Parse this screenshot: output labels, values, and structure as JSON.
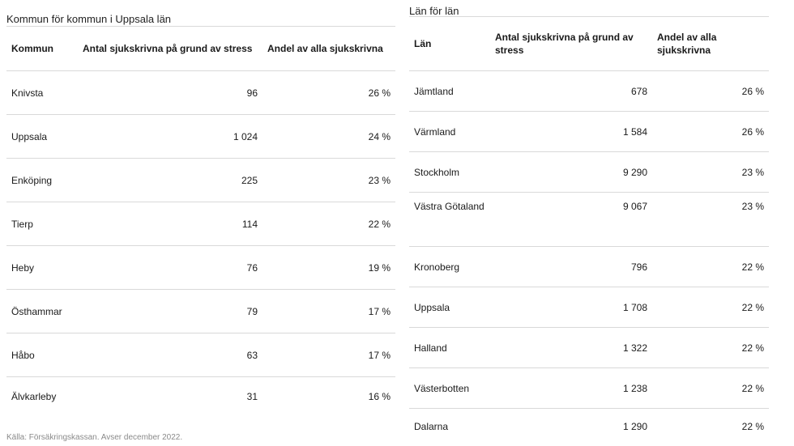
{
  "left_table": {
    "caption": "Kommun för kommun i Uppsala län",
    "headers": [
      "Kommun",
      "Antal sjukskrivna på grund av stress",
      "Andel av alla sjukskrivna"
    ],
    "rows": [
      [
        "Knivsta",
        "96",
        "26 %"
      ],
      [
        "Uppsala",
        "1 024",
        "24 %"
      ],
      [
        "Enköping",
        "225",
        "23 %"
      ],
      [
        "Tierp",
        "114",
        "22 %"
      ],
      [
        "Heby",
        "76",
        "19 %"
      ],
      [
        "Östhammar",
        "79",
        "17 %"
      ],
      [
        "Håbo",
        "63",
        "17 %"
      ],
      [
        "Älvkarleby",
        "31",
        "16 %"
      ]
    ]
  },
  "right_table": {
    "caption": "Län för län",
    "headers": [
      "Län",
      "Antal sjukskrivna på grund av stress",
      "Andel av alla sjukskrivna"
    ],
    "rows": [
      [
        "Jämtland",
        "678",
        "26 %"
      ],
      [
        "Värmland",
        "1 584",
        "26 %"
      ],
      [
        "Stockholm",
        "9 290",
        "23 %"
      ],
      [
        "Västra Götaland",
        "9 067",
        "23 %"
      ],
      [
        "Kronoberg",
        "796",
        "22 %"
      ],
      [
        "Uppsala",
        "1 708",
        "22 %"
      ],
      [
        "Halland",
        "1 322",
        "22 %"
      ],
      [
        "Västerbotten",
        "1 238",
        "22 %"
      ],
      [
        "Dalarna",
        "1 290",
        "22 %"
      ]
    ]
  },
  "source": "Källa: Försäkringskassan. Avser december 2022."
}
